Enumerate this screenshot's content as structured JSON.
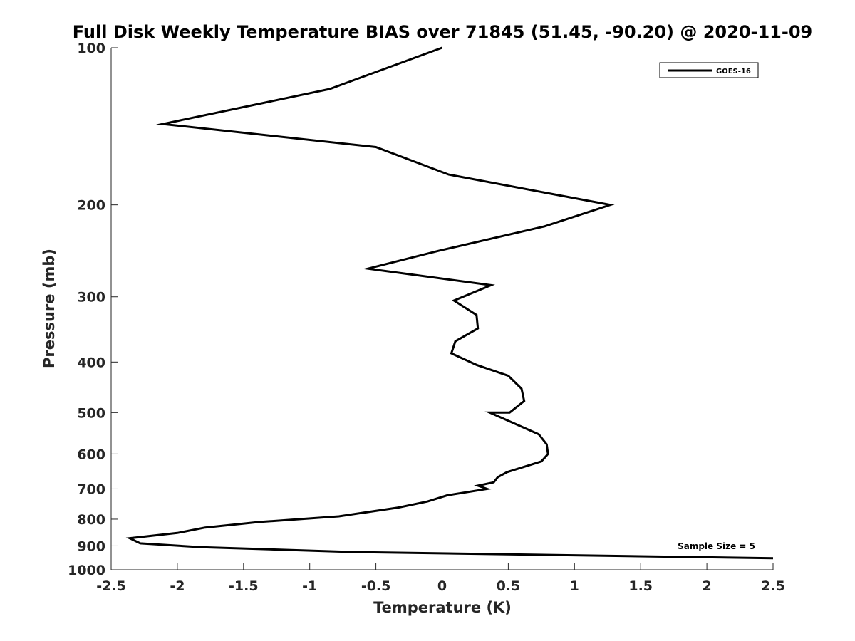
{
  "chart_data": {
    "type": "line",
    "title": "Full Disk Weekly Temperature BIAS over 71845 (51.45, -90.20) @ 2020-11-09",
    "xlabel": "Temperature (K)",
    "ylabel": "Pressure (mb)",
    "xlim": [
      -2.5,
      2.5
    ],
    "ylim": [
      100,
      1000
    ],
    "y_scale": "log",
    "y_reversed": true,
    "x_ticks": [
      -2.5,
      -2,
      -1.5,
      -1,
      -0.5,
      0,
      0.5,
      1,
      1.5,
      2,
      2.5
    ],
    "x_tick_labels": [
      "-2.5",
      "-2",
      "-1.5",
      "-1",
      "-0.5",
      "0",
      "0.5",
      "1",
      "1.5",
      "2",
      "2.5"
    ],
    "y_ticks": [
      100,
      200,
      300,
      400,
      500,
      600,
      700,
      800,
      900,
      1000
    ],
    "y_tick_labels": [
      "100",
      "200",
      "300",
      "400",
      "500",
      "600",
      "700",
      "800",
      "900",
      "1000"
    ],
    "grid": false,
    "legend_position": "top-right",
    "line_color": "#000000",
    "series": [
      {
        "name": "GOES-16",
        "x": [
          0.0,
          -0.85,
          -2.11,
          -0.5,
          0.05,
          1.27,
          0.77,
          -0.03,
          -0.56,
          0.37,
          0.09,
          0.26,
          0.27,
          0.1,
          0.07,
          0.26,
          0.5,
          0.6,
          0.62,
          0.51,
          0.36,
          0.73,
          0.79,
          0.8,
          0.75,
          0.49,
          0.42,
          0.39,
          0.27,
          0.34,
          0.04,
          -0.11,
          -0.33,
          -0.78,
          -1.38,
          -1.79,
          -2.0,
          -2.36,
          -2.28,
          -1.82,
          -0.64,
          2.5
        ],
        "y": [
          100,
          120,
          140,
          155,
          175,
          200,
          220,
          245,
          265,
          285,
          305,
          325,
          345,
          365,
          385,
          405,
          425,
          450,
          475,
          500,
          500,
          550,
          575,
          600,
          620,
          650,
          665,
          680,
          690,
          700,
          720,
          740,
          760,
          790,
          810,
          830,
          850,
          870,
          890,
          905,
          925,
          950
        ]
      }
    ],
    "annotation": "Sample Size = 5"
  }
}
